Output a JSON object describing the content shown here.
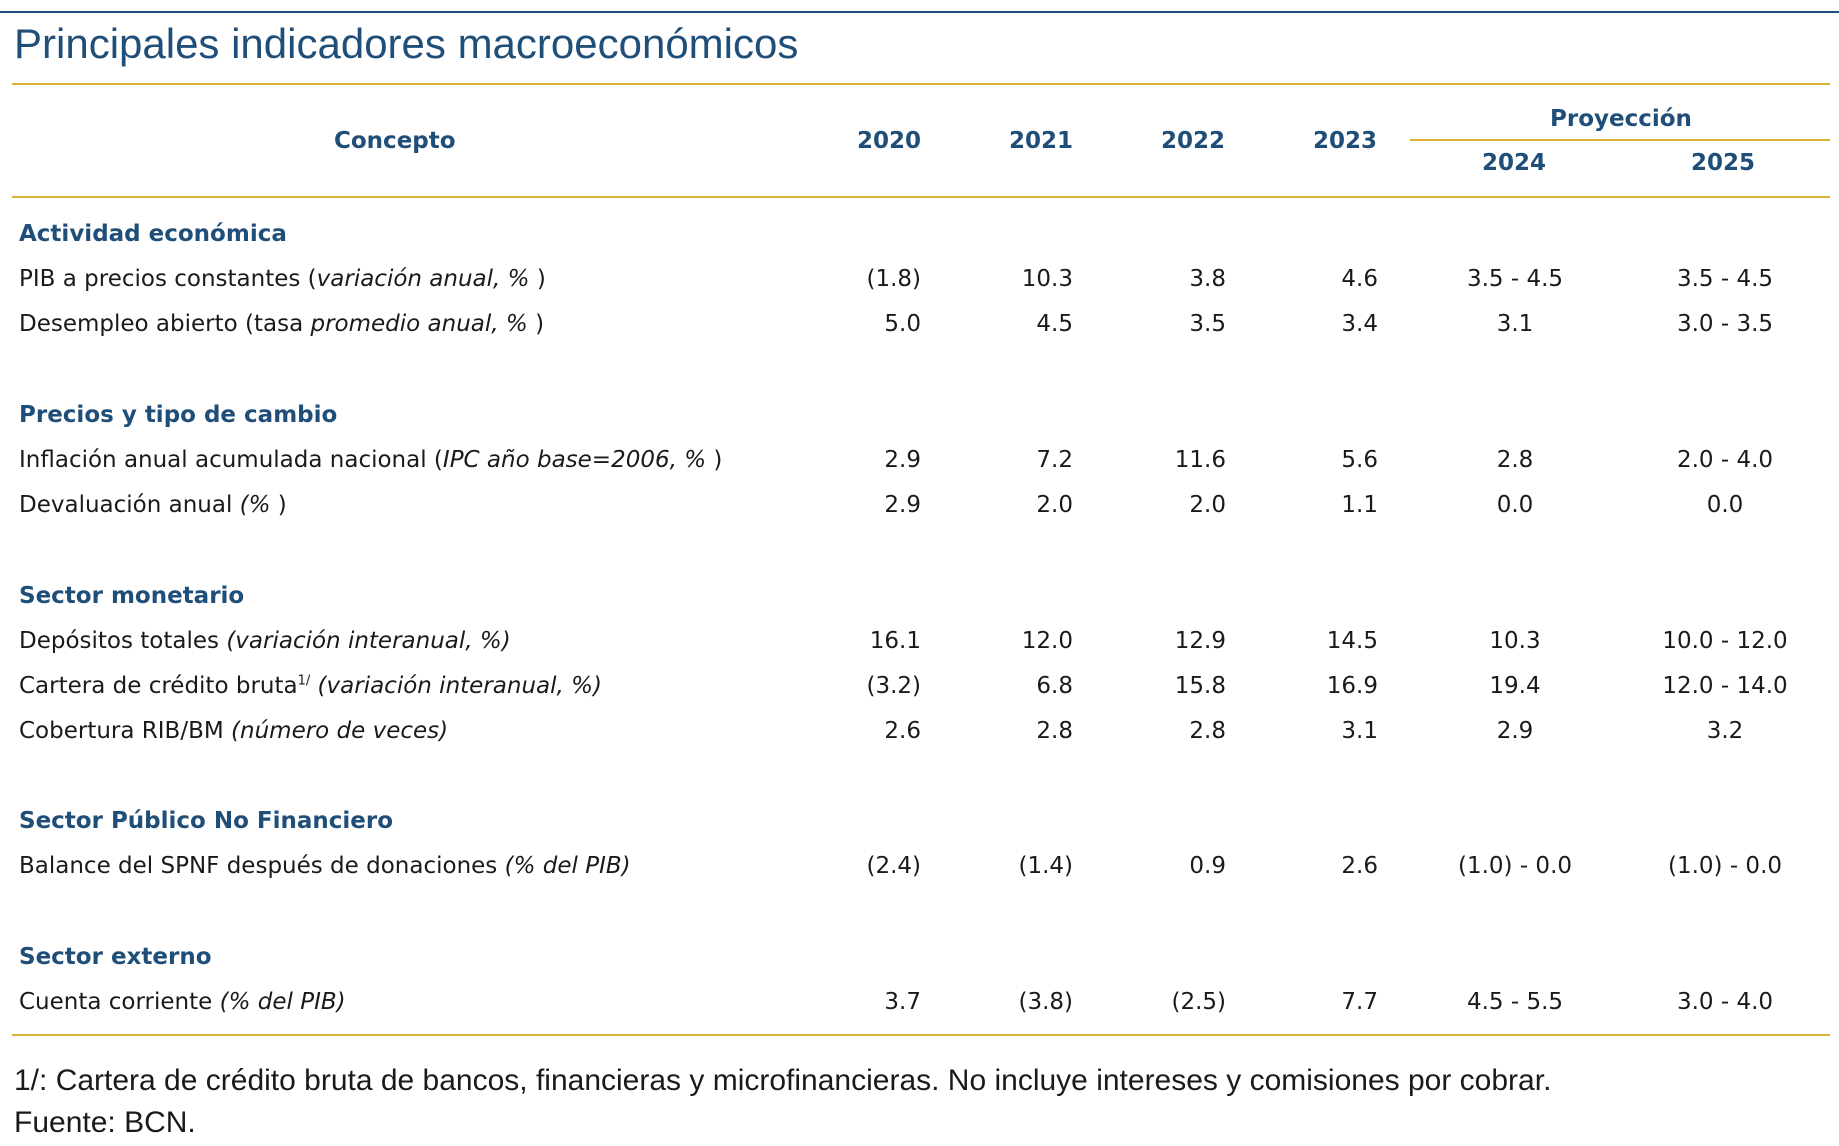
{
  "title": "Principales indicadores macroeconómicos",
  "header": {
    "concepto": "Concepto",
    "years": [
      "2020",
      "2021",
      "2022",
      "2023"
    ],
    "proyeccion": "Proyección",
    "proj_years": [
      "2024",
      "2025"
    ]
  },
  "sections": {
    "actividad": "Actividad económica",
    "precios": "Precios y tipo de cambio",
    "monetario": "Sector monetario",
    "publico": "Sector Público No Financiero",
    "externo": "Sector externo"
  },
  "rows": {
    "pib": {
      "label": "PIB a precios constantes (",
      "label_it": "variación anual, %",
      "label_end": " )",
      "values": [
        "(1.8)",
        "10.3",
        "3.8",
        "4.6",
        "3.5 - 4.5",
        "3.5 - 4.5"
      ]
    },
    "desempleo": {
      "label": "Desempleo abierto (tasa ",
      "label_it": "promedio anual, %",
      "label_end": " )",
      "values": [
        "5.0",
        "4.5",
        "3.5",
        "3.4",
        "3.1",
        "3.0 - 3.5"
      ]
    },
    "inflacion": {
      "label": "Inflación anual acumulada nacional (",
      "label_it": "IPC año base=2006, %",
      "label_end": " )",
      "values": [
        "2.9",
        "7.2",
        "11.6",
        "5.6",
        "2.8",
        "2.0 - 4.0"
      ]
    },
    "devaluacion": {
      "label": "Devaluación anual ",
      "label_it": "(%",
      "label_end": " )",
      "values": [
        "2.9",
        "2.0",
        "2.0",
        "1.1",
        "0.0",
        "0.0"
      ]
    },
    "depositos": {
      "label": "Depósitos totales ",
      "label_it": "(variación interanual, %)",
      "values": [
        "16.1",
        "12.0",
        "12.9",
        "14.5",
        "10.3",
        "10.0 - 12.0"
      ]
    },
    "cartera": {
      "label": "Cartera de crédito bruta",
      "sup": "1/",
      "label_it": " (variación interanual, %)",
      "values": [
        "(3.2)",
        "6.8",
        "15.8",
        "16.9",
        "19.4",
        "12.0 - 14.0"
      ]
    },
    "cobertura": {
      "label": "Cobertura RIB/BM ",
      "label_it": "(número de veces)",
      "values": [
        "2.6",
        "2.8",
        "2.8",
        "3.1",
        "2.9",
        "3.2"
      ]
    },
    "balance": {
      "label": "Balance del SPNF después de donaciones ",
      "label_it": "(% del PIB)",
      "values": [
        "(2.4)",
        "(1.4)",
        "0.9",
        "2.6",
        "(1.0) - 0.0",
        "(1.0) - 0.0"
      ]
    },
    "cuenta": {
      "label": "Cuenta corriente ",
      "label_it": "(% del PIB)",
      "values": [
        "3.7",
        "(3.8)",
        "(2.5)",
        "7.7",
        "4.5 - 5.5",
        "3.0 - 4.0"
      ]
    }
  },
  "footnotes": {
    "note1": "1/: Cartera de crédito bruta de bancos, financieras y microfinancieras. No incluye intereses y comisiones por cobrar.",
    "source": "Fuente: BCN."
  }
}
